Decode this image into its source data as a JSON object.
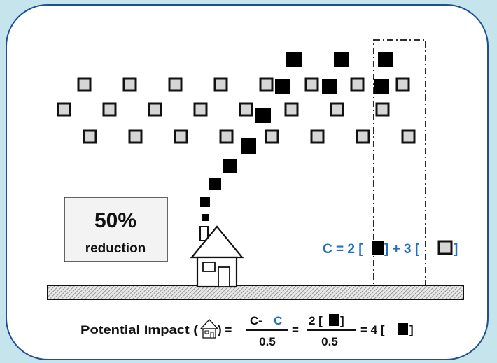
{
  "reduction_box": {
    "percent": "50%",
    "label": "reduction"
  },
  "concentration_label": {
    "prefix": "C = 2 [",
    "mid": "] + 3 [",
    "suffix": "]"
  },
  "formula": {
    "lead": "Potential Impact (",
    "lead_close": ") =",
    "frac1_num_c1": "C",
    "frac1_num_op": " - ",
    "frac1_num_c2": "C",
    "frac1_den": "0.5",
    "eq1": "=",
    "frac2_num_a": "2 [",
    "frac2_num_b": "]",
    "frac2_den": "0.5",
    "result_a": "= 4 [",
    "result_b": "]"
  },
  "colors": {
    "accent_blue": "#1f6fc5",
    "frame_border": "#1f4e93",
    "background": "#c5e4ec"
  }
}
